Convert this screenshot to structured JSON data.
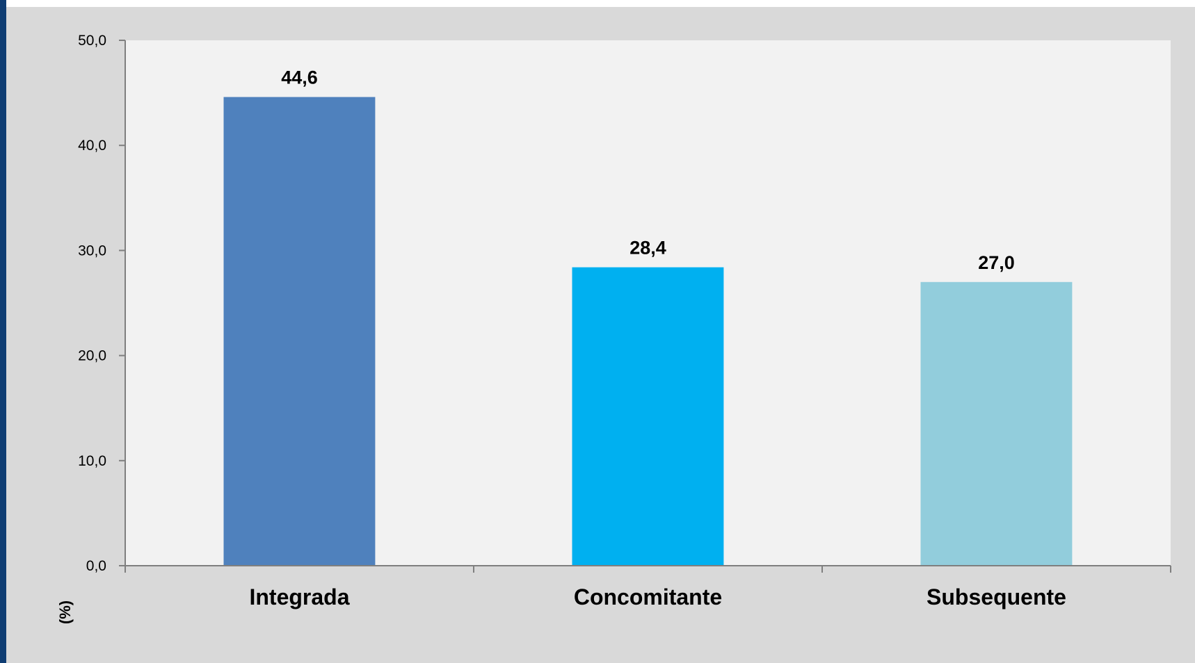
{
  "chart_data": {
    "type": "bar",
    "categories": [
      "Integrada",
      "Concomitante",
      "Subsequente"
    ],
    "values": [
      44.6,
      28.4,
      27.0
    ],
    "value_labels": [
      "44,6",
      "28,4",
      "27,0"
    ],
    "bar_colors": [
      "#4f81bd",
      "#00b0f0",
      "#92cddc"
    ],
    "title": "",
    "xlabel": "",
    "ylabel": "(%)",
    "ylim": [
      0,
      50
    ],
    "yticks": [
      0,
      10,
      20,
      30,
      40,
      50
    ],
    "ytick_labels": [
      "0,0",
      "10,0",
      "20,0",
      "30,0",
      "40,0",
      "50,0"
    ],
    "grid": false,
    "legend": "none",
    "plot_background": "#f2f2f2",
    "frame_background": "#d9d9d9",
    "axis_color": "#7f7f7f"
  }
}
